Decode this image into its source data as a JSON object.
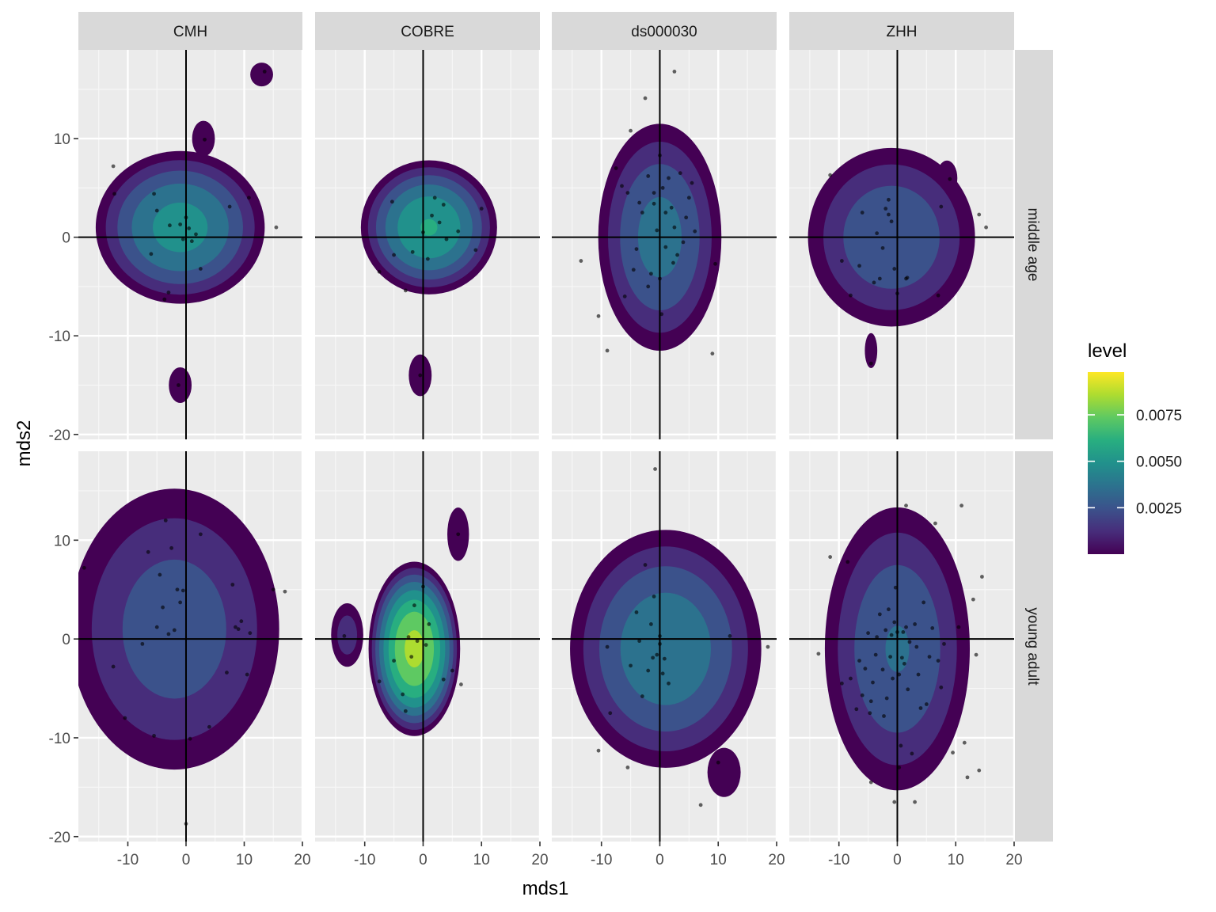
{
  "chart_data": {
    "type": "contour-density-facet",
    "xlabel": "mds1",
    "ylabel": "mds2",
    "xlim": [
      -18.5,
      20
    ],
    "ylim": [
      -20.5,
      19
    ],
    "x_ticks": [
      -10,
      0,
      10,
      20
    ],
    "x_tick_labels": [
      "-10",
      "0",
      "10",
      "20"
    ],
    "y_ticks": [
      -20,
      -10,
      0,
      10
    ],
    "y_tick_labels": [
      "-20",
      "-10",
      "0",
      "10"
    ],
    "columns": [
      "CMH",
      "COBRE",
      "ds000030",
      "ZHH"
    ],
    "rows": [
      "middle age",
      "young adult"
    ],
    "reference_lines": {
      "x": 0,
      "y": 0
    },
    "grid": true,
    "legend": {
      "title": "level",
      "position": "right",
      "colormap": "viridis",
      "range": [
        0,
        0.0098
      ],
      "ticks": [
        0.0025,
        0.005,
        0.0075
      ],
      "tick_labels": [
        "0.0025",
        "0.0050",
        "0.0075"
      ]
    },
    "palette": [
      "#440154",
      "#472d7b",
      "#3b528b",
      "#2c728e",
      "#21918c",
      "#28ae80",
      "#5ec962",
      "#addc30",
      "#fde725"
    ],
    "panels": [
      {
        "column": "CMH",
        "row": "middle age",
        "blobs": [
          {
            "cx": -1,
            "cy": 1,
            "rx": 15,
            "ry": 8,
            "peak": 0.0055
          },
          {
            "cx": 3,
            "cy": 10,
            "rx": 2.6,
            "ry": 2.4,
            "peak": 0.0008
          },
          {
            "cx": -1,
            "cy": -15,
            "rx": 2.6,
            "ry": 2.4,
            "peak": 0.0008
          },
          {
            "cx": 13,
            "cy": 16.5,
            "rx": 2.6,
            "ry": 1.6,
            "peak": 0.0008
          }
        ],
        "points": [
          [
            -12.5,
            7.2
          ],
          [
            -12.3,
            4.4
          ],
          [
            -6,
            -1.7
          ],
          [
            -5.5,
            4.4
          ],
          [
            -5,
            2.7
          ],
          [
            -3.7,
            -6.3
          ],
          [
            -3,
            -5.6
          ],
          [
            -2.8,
            1.2
          ],
          [
            -1,
            1.3
          ],
          [
            -0.5,
            -0.2
          ],
          [
            0,
            2
          ],
          [
            0.5,
            0.9
          ],
          [
            1,
            -0.4
          ],
          [
            1.7,
            0.3
          ],
          [
            2.5,
            -3.2
          ],
          [
            3.2,
            9.9
          ],
          [
            7.5,
            3.1
          ],
          [
            10.8,
            4
          ],
          [
            15.5,
            1
          ],
          [
            -1.3,
            -15
          ],
          [
            13.5,
            16.8
          ]
        ]
      },
      {
        "column": "COBRE",
        "row": "middle age",
        "blobs": [
          {
            "cx": 1,
            "cy": 1,
            "rx": 12,
            "ry": 7,
            "peak": 0.0062
          },
          {
            "cx": -0.5,
            "cy": -14,
            "rx": 2.6,
            "ry": 2.8,
            "peak": 0.0008
          }
        ],
        "points": [
          [
            -7.5,
            -3.5
          ],
          [
            -5.3,
            3.6
          ],
          [
            -5,
            -1.8
          ],
          [
            -3,
            -5.4
          ],
          [
            -1.8,
            -1.5
          ],
          [
            0,
            0.5
          ],
          [
            0.8,
            -2.2
          ],
          [
            1.5,
            2.2
          ],
          [
            2,
            4
          ],
          [
            2.8,
            1.5
          ],
          [
            3.5,
            3.3
          ],
          [
            4,
            -0.2
          ],
          [
            6,
            0.6
          ],
          [
            9,
            -1.3
          ],
          [
            10,
            2.9
          ],
          [
            -0.5,
            -14
          ]
        ]
      },
      {
        "column": "ds000030",
        "row": "middle age",
        "blobs": [
          {
            "cx": 0,
            "cy": 0,
            "rx": 11,
            "ry": 12,
            "peak": 0.0043
          }
        ],
        "points": [
          [
            -13.5,
            -2.4
          ],
          [
            -10.5,
            -8
          ],
          [
            -9,
            -11.5
          ],
          [
            -7.5,
            7
          ],
          [
            -6.5,
            5.2
          ],
          [
            -6,
            -6
          ],
          [
            -5.5,
            4.5
          ],
          [
            -5,
            10.8
          ],
          [
            -4.5,
            -3.3
          ],
          [
            -4,
            -1.2
          ],
          [
            -3.5,
            3.5
          ],
          [
            -3,
            2.5
          ],
          [
            -2.5,
            14.1
          ],
          [
            -2,
            -5
          ],
          [
            -2,
            6.2
          ],
          [
            -1.5,
            -3.7
          ],
          [
            -1,
            3.4
          ],
          [
            -1,
            4.5
          ],
          [
            -0.5,
            0.7
          ],
          [
            0,
            8.3
          ],
          [
            0,
            -4.2
          ],
          [
            0.3,
            -7.8
          ],
          [
            0.5,
            5
          ],
          [
            1,
            -1
          ],
          [
            1,
            2.5
          ],
          [
            1.5,
            6
          ],
          [
            2,
            3
          ],
          [
            2.3,
            -2.6
          ],
          [
            2.5,
            1
          ],
          [
            3,
            -1.8
          ],
          [
            3.5,
            6.5
          ],
          [
            4,
            -0.5
          ],
          [
            4.5,
            2
          ],
          [
            5,
            4
          ],
          [
            5.5,
            5.5
          ],
          [
            6,
            0.6
          ],
          [
            9.5,
            -2.7
          ],
          [
            2.5,
            16.8
          ],
          [
            9,
            -11.8
          ]
        ]
      },
      {
        "column": "ZHH",
        "row": "middle age",
        "blobs": [
          {
            "cx": -1,
            "cy": 0,
            "rx": 15,
            "ry": 9.5,
            "peak": 0.0038
          },
          {
            "cx": 8.5,
            "cy": 6,
            "rx": 2.5,
            "ry": 2.5,
            "peak": 0.0007
          },
          {
            "cx": -4.5,
            "cy": -11.5,
            "rx": 1.5,
            "ry": 2.5,
            "peak": 0.0007
          }
        ],
        "points": [
          [
            -11.5,
            6.3
          ],
          [
            -9.5,
            -2.4
          ],
          [
            -8,
            -5.9
          ],
          [
            -6.5,
            -2.9
          ],
          [
            -6,
            2.5
          ],
          [
            -4,
            -4.6
          ],
          [
            -3.5,
            0.4
          ],
          [
            -3,
            -4.2
          ],
          [
            -2.5,
            -1.1
          ],
          [
            -1.5,
            2.3
          ],
          [
            -1.5,
            3.8
          ],
          [
            -2,
            2.9
          ],
          [
            -1,
            1.6
          ],
          [
            -0.5,
            -3.2
          ],
          [
            0,
            -5.7
          ],
          [
            1.5,
            -4.2
          ],
          [
            1.7,
            -4.1
          ],
          [
            7,
            -5.9
          ],
          [
            7.5,
            3.1
          ],
          [
            9,
            5.9
          ],
          [
            14,
            2.3
          ],
          [
            15.2,
            1
          ],
          [
            -4.5,
            -12.8
          ]
        ]
      },
      {
        "column": "CMH",
        "row": "young adult",
        "blobs": [
          {
            "cx": -2,
            "cy": 1,
            "rx": 19,
            "ry": 15,
            "peak": 0.0034
          }
        ],
        "points": [
          [
            -17.5,
            7.2
          ],
          [
            -12.5,
            -2.8
          ],
          [
            -10.5,
            -8
          ],
          [
            -7.5,
            -0.5
          ],
          [
            -6.5,
            8.8
          ],
          [
            -5.5,
            -9.8
          ],
          [
            -5,
            1.2
          ],
          [
            -4.5,
            6.5
          ],
          [
            -4,
            3.2
          ],
          [
            -3.5,
            12
          ],
          [
            -3,
            0.5
          ],
          [
            -2.5,
            9.2
          ],
          [
            -2,
            0.9
          ],
          [
            -1.5,
            5
          ],
          [
            -1,
            3.7
          ],
          [
            -0.5,
            4.9
          ],
          [
            0,
            -18.7
          ],
          [
            0.7,
            -10.1
          ],
          [
            2.5,
            10.6
          ],
          [
            4,
            -8.9
          ],
          [
            7,
            -3.4
          ],
          [
            8,
            5.5
          ],
          [
            8.5,
            1.2
          ],
          [
            9,
            1
          ],
          [
            9.5,
            1.8
          ],
          [
            10.5,
            -3.6
          ],
          [
            11,
            0.6
          ],
          [
            15,
            5
          ],
          [
            17,
            4.8
          ]
        ]
      },
      {
        "column": "COBRE",
        "row": "young adult",
        "blobs": [
          {
            "cx": -1.5,
            "cy": -1,
            "rx": 8,
            "ry": 9,
            "peak": 0.0088
          },
          {
            "cx": -13,
            "cy": 0.4,
            "rx": 3,
            "ry": 3.5,
            "peak": 0.0022
          },
          {
            "cx": 6,
            "cy": 10.6,
            "rx": 2.2,
            "ry": 3.2,
            "peak": 0.0012
          }
        ],
        "points": [
          [
            -13.5,
            0.3
          ],
          [
            -7.5,
            -4.3
          ],
          [
            -5,
            -2.2
          ],
          [
            -3.5,
            -5.6
          ],
          [
            -3,
            -7.3
          ],
          [
            -2.5,
            0.2
          ],
          [
            -2,
            -1.8
          ],
          [
            -1.5,
            3.4
          ],
          [
            -1,
            -0.2
          ],
          [
            0,
            5.3
          ],
          [
            0.5,
            -0.6
          ],
          [
            1,
            1.5
          ],
          [
            3.5,
            -4.1
          ],
          [
            5,
            -3.2
          ],
          [
            6,
            10.6
          ],
          [
            6.5,
            -4.6
          ]
        ]
      },
      {
        "column": "ds000030",
        "row": "young adult",
        "blobs": [
          {
            "cx": 1,
            "cy": -1,
            "rx": 17,
            "ry": 12.5,
            "peak": 0.0048
          },
          {
            "cx": 11,
            "cy": -13.5,
            "rx": 4,
            "ry": 3.5,
            "peak": 0.0007
          }
        ],
        "points": [
          [
            -10.5,
            -11.3
          ],
          [
            -9,
            -0.8
          ],
          [
            -8.5,
            -7.5
          ],
          [
            -5.5,
            -13
          ],
          [
            -5,
            -2.7
          ],
          [
            -4,
            2.7
          ],
          [
            -3.5,
            -0.2
          ],
          [
            -3,
            -5.8
          ],
          [
            -2.5,
            7.5
          ],
          [
            -2,
            -3.2
          ],
          [
            -1.5,
            1.5
          ],
          [
            -1.2,
            -1.9
          ],
          [
            -1,
            4.3
          ],
          [
            -0.5,
            -1.6
          ],
          [
            0,
            -0.5
          ],
          [
            0,
            0.3
          ],
          [
            0.5,
            -3.5
          ],
          [
            0.8,
            -2
          ],
          [
            1.5,
            -4.5
          ],
          [
            -0.8,
            17.2
          ],
          [
            7,
            -16.8
          ],
          [
            10,
            -12.5
          ],
          [
            12,
            0.3
          ],
          [
            18.5,
            -0.8
          ]
        ]
      },
      {
        "column": "ZHH",
        "row": "young adult",
        "blobs": [
          {
            "cx": 0,
            "cy": -1,
            "rx": 13,
            "ry": 15,
            "peak": 0.0039
          }
        ],
        "points": [
          [
            -13.5,
            -1.5
          ],
          [
            -11.5,
            8.3
          ],
          [
            -9.5,
            -4.5
          ],
          [
            -8.5,
            7.8
          ],
          [
            -8,
            -4
          ],
          [
            -7,
            -7.1
          ],
          [
            -6.5,
            -2.2
          ],
          [
            -6,
            -5.7
          ],
          [
            -5.5,
            -3
          ],
          [
            -5,
            0.6
          ],
          [
            -4.7,
            -7.5
          ],
          [
            -4.5,
            -6.3
          ],
          [
            -4.2,
            -4.4
          ],
          [
            -3.7,
            -1.6
          ],
          [
            -3.5,
            0.2
          ],
          [
            -3,
            2.5
          ],
          [
            -2.5,
            -3.1
          ],
          [
            -2.3,
            -7.8
          ],
          [
            -2,
            0.9
          ],
          [
            -1.8,
            -6
          ],
          [
            -1.5,
            3
          ],
          [
            -1.2,
            -1.8
          ],
          [
            -1,
            0.4
          ],
          [
            -0.8,
            -4
          ],
          [
            -0.5,
            1.7
          ],
          [
            -0.3,
            5.2
          ],
          [
            0,
            0.7
          ],
          [
            0.3,
            -3.6
          ],
          [
            0.6,
            -10.8
          ],
          [
            0.8,
            -1.9
          ],
          [
            1,
            0.7
          ],
          [
            1.2,
            -2.5
          ],
          [
            1.5,
            1.2
          ],
          [
            1.8,
            -5.1
          ],
          [
            2.1,
            -0.3
          ],
          [
            2.5,
            -11.6
          ],
          [
            3,
            1.5
          ],
          [
            3.3,
            -0.8
          ],
          [
            3.6,
            -3.6
          ],
          [
            4,
            -7
          ],
          [
            4.5,
            3.7
          ],
          [
            5,
            -6.6
          ],
          [
            5.5,
            -1.8
          ],
          [
            6,
            1.1
          ],
          [
            6.5,
            11.7
          ],
          [
            7,
            -2.2
          ],
          [
            7.5,
            -4.9
          ],
          [
            8,
            -0.5
          ],
          [
            9.5,
            -11.5
          ],
          [
            10.5,
            1.2
          ],
          [
            11,
            13.5
          ],
          [
            11.5,
            -10.5
          ],
          [
            12,
            -14
          ],
          [
            13,
            4
          ],
          [
            13.5,
            -1.6
          ],
          [
            14,
            -13.3
          ],
          [
            14.5,
            6.3
          ],
          [
            -4.5,
            -14.5
          ],
          [
            0.3,
            -13
          ],
          [
            1.5,
            13.5
          ],
          [
            -0.5,
            -16.5
          ],
          [
            3,
            -16.5
          ]
        ]
      }
    ]
  }
}
